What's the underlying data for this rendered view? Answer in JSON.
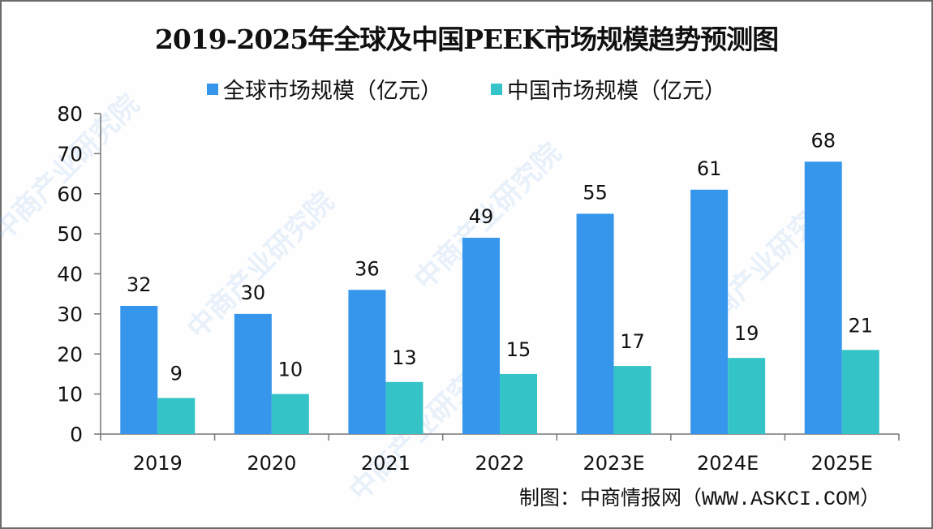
{
  "chart_data": {
    "type": "bar",
    "title": "2019-2025年全球及中国PEEK市场规模趋势预测图",
    "categories": [
      "2019",
      "2020",
      "2021",
      "2022",
      "2023E",
      "2024E",
      "2025E"
    ],
    "series": [
      {
        "name": "全球市场规模（亿元）",
        "color": "#3596ec",
        "values": [
          32,
          30,
          36,
          49,
          55,
          61,
          68
        ]
      },
      {
        "name": "中国市场规模（亿元）",
        "color": "#34c3c6",
        "values": [
          9,
          10,
          13,
          15,
          17,
          19,
          21
        ]
      }
    ],
    "xlabel": "",
    "ylabel": "",
    "ylim": [
      0,
      80
    ],
    "yticks": [
      0,
      10,
      20,
      30,
      40,
      50,
      60,
      70,
      80
    ],
    "grid": false,
    "legend_position": "top-center",
    "data_labels": true
  },
  "source": {
    "label": "制图：中商情报网",
    "site": "（WWW.ASKCI.COM）"
  },
  "watermark": "中商产业研究院"
}
